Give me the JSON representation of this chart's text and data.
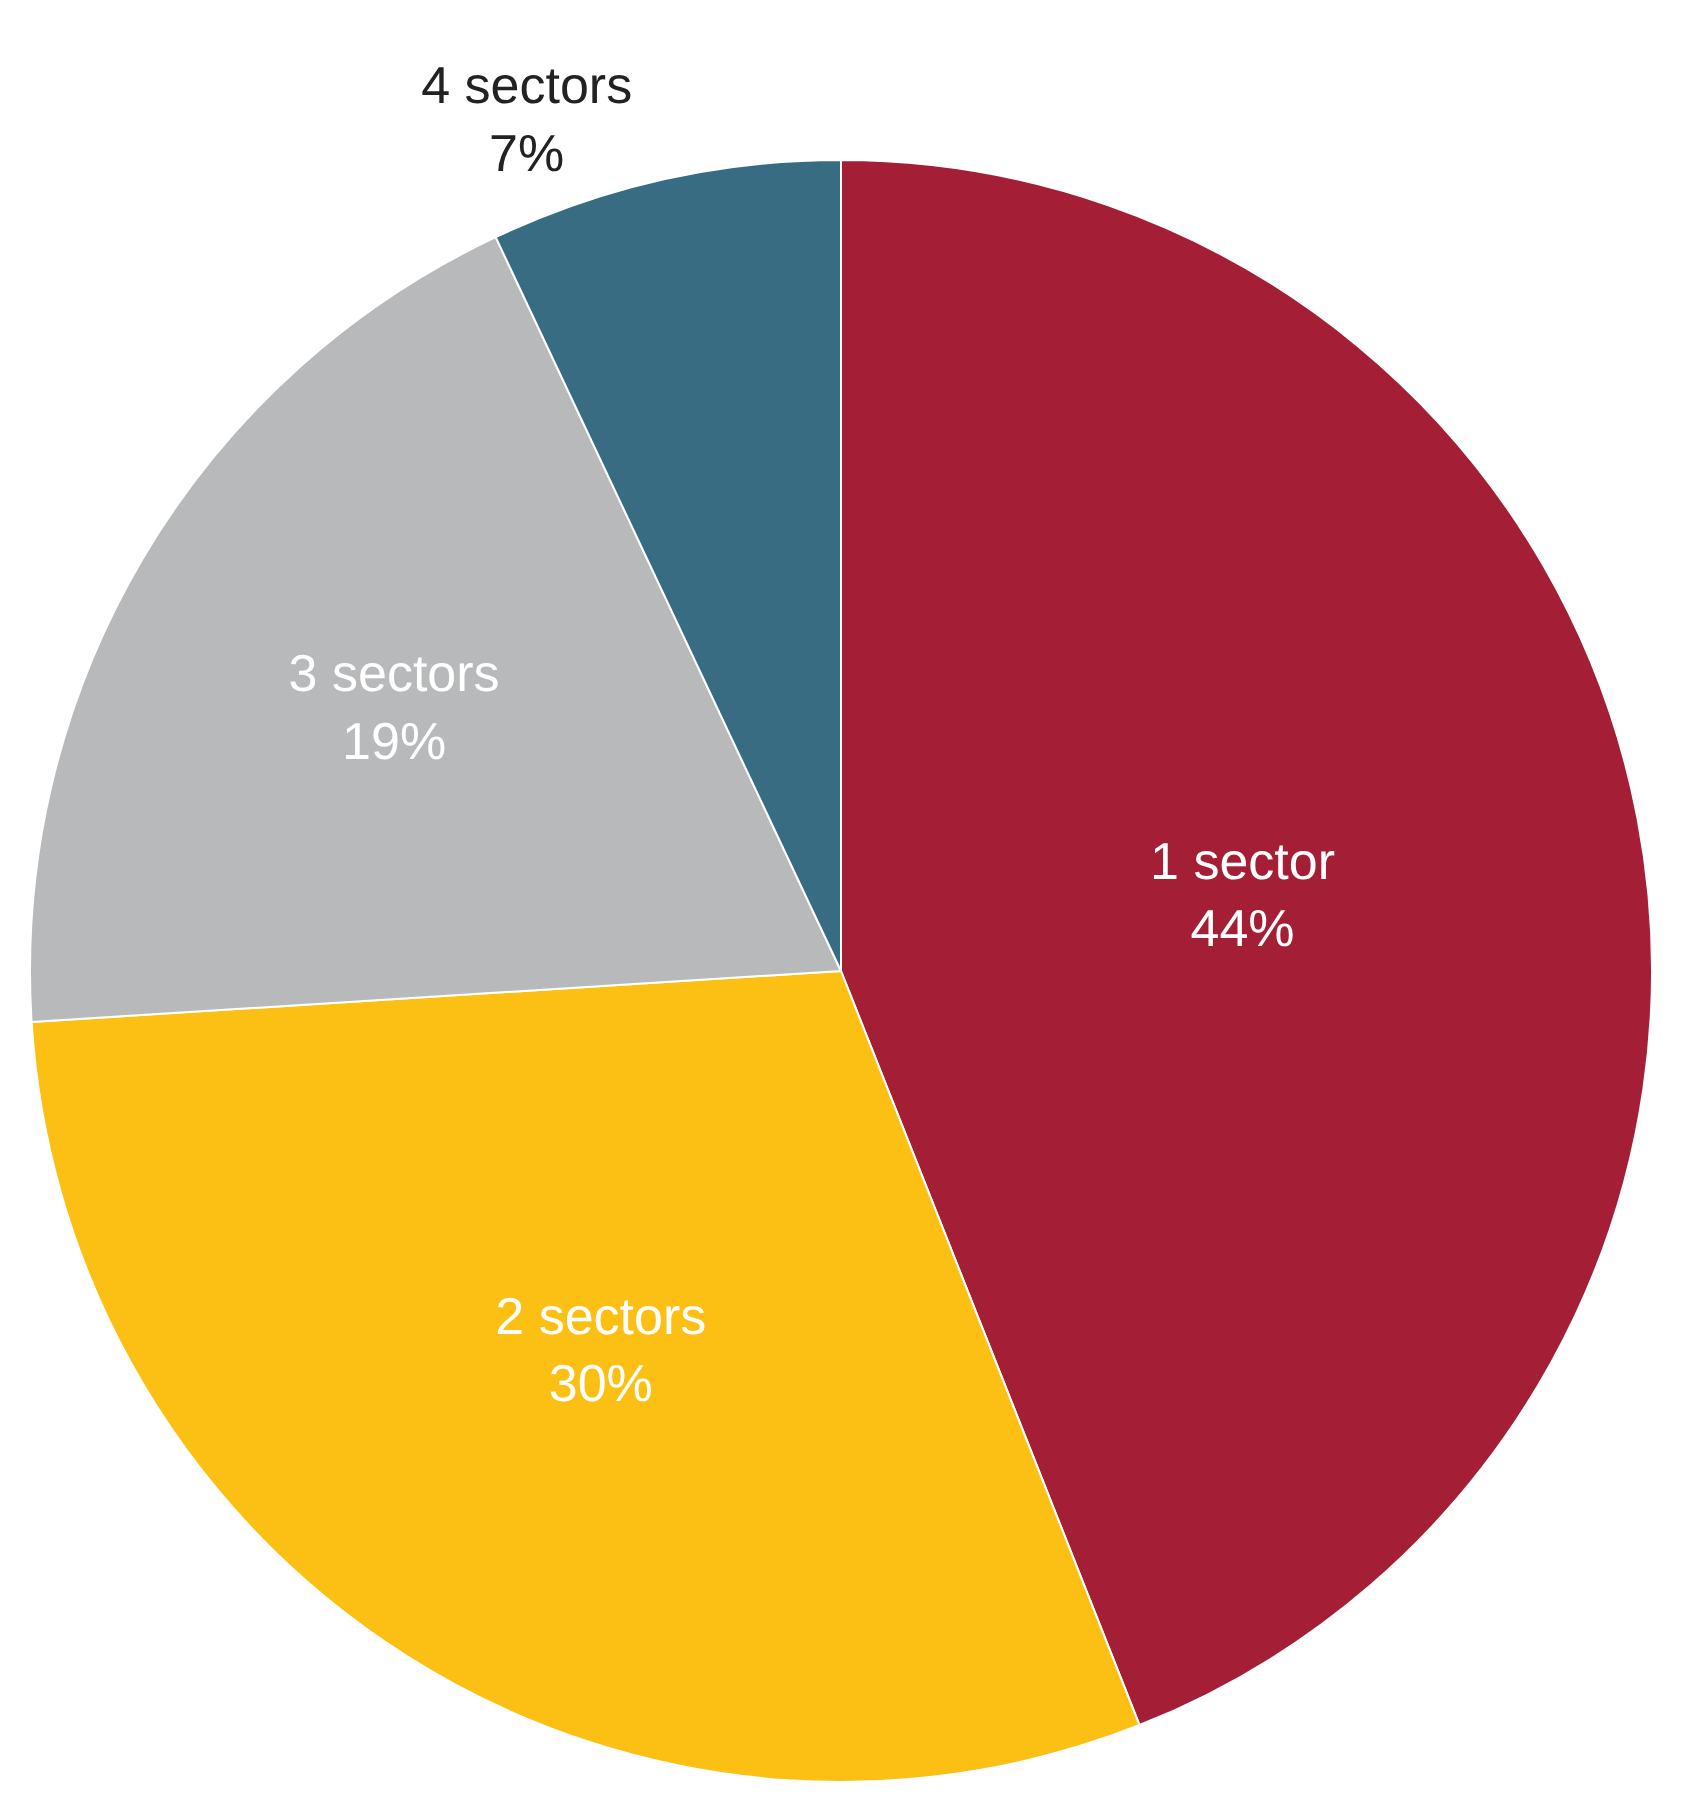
{
  "chart_data": {
    "type": "pie",
    "categories": [
      "1 sector",
      "2 sectors",
      "3 sectors",
      "4 sectors"
    ],
    "values": [
      44,
      30,
      19,
      7
    ],
    "value_labels": [
      "44%",
      "30%",
      "19%",
      "7%"
    ],
    "colors": [
      "#a41e36",
      "#fcc015",
      "#b8b9bb",
      "#386c82"
    ],
    "legend": false
  }
}
